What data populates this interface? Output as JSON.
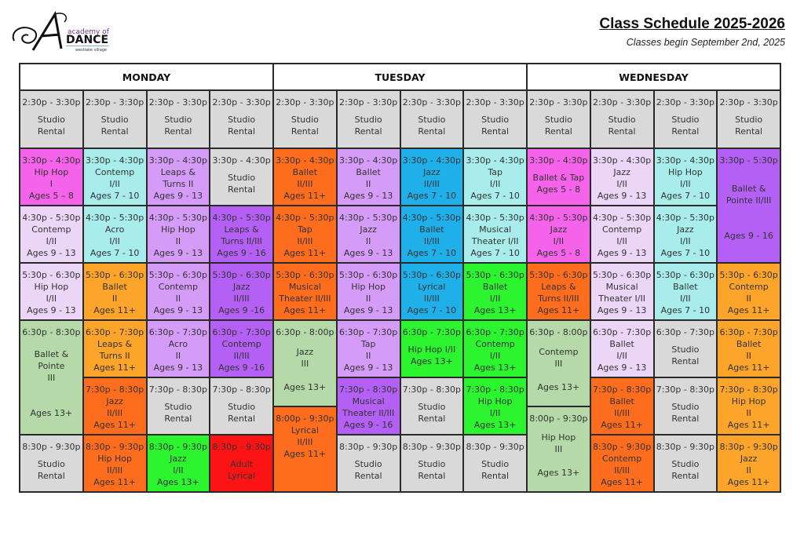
{
  "logo": {
    "script_letter": "A",
    "line1": "academy of",
    "line2": "DANCE",
    "line3": "westlake village"
  },
  "header": {
    "title": "Class Schedule 2025-2026",
    "subtitle": "Classes begin September 2nd, 2025"
  },
  "days": [
    "MONDAY",
    "TUESDAY",
    "WEDNESDAY"
  ],
  "colors": {
    "gray": "#d9d9d9",
    "magenta": "#f463ea",
    "cyan": "#a8ecec",
    "lavender_light": "#ecd6f8",
    "lavender": "#d49cf7",
    "purple": "#b460f4",
    "orange_red": "#fe6c1e",
    "orange": "#fda52b",
    "blue": "#1fb0ea",
    "green": "#2cf42f",
    "sage": "#b5d9a9",
    "red": "#fc1414"
  },
  "cells": [
    {
      "day": 0,
      "studio": 0,
      "time": "2:30p - 3:30p",
      "color": "gray",
      "lines": [
        "Studio",
        "Rental"
      ]
    },
    {
      "day": 0,
      "studio": 1,
      "time": "2:30p - 3:30p",
      "color": "gray",
      "lines": [
        "Studio",
        "Rental"
      ]
    },
    {
      "day": 0,
      "studio": 2,
      "time": "2:30p - 3:30p",
      "color": "gray",
      "lines": [
        "Studio",
        "Rental"
      ]
    },
    {
      "day": 0,
      "studio": 3,
      "time": "2:30p - 3:30p",
      "color": "gray",
      "lines": [
        "Studio",
        "Rental"
      ]
    },
    {
      "day": 1,
      "studio": 0,
      "time": "2:30p - 3:30p",
      "color": "gray",
      "lines": [
        "Studio",
        "Rental"
      ]
    },
    {
      "day": 1,
      "studio": 1,
      "time": "2:30p - 3:30p",
      "color": "gray",
      "lines": [
        "Studio",
        "Rental"
      ]
    },
    {
      "day": 1,
      "studio": 2,
      "time": "2:30p - 3:30p",
      "color": "gray",
      "lines": [
        "Studio",
        "Rental"
      ]
    },
    {
      "day": 1,
      "studio": 3,
      "time": "2:30p - 3:30p",
      "color": "gray",
      "lines": [
        "Studio",
        "Rental"
      ]
    },
    {
      "day": 2,
      "studio": 0,
      "time": "2:30p - 3:30p",
      "color": "gray",
      "lines": [
        "Studio",
        "Rental"
      ]
    },
    {
      "day": 2,
      "studio": 1,
      "time": "2:30p - 3:30p",
      "color": "gray",
      "lines": [
        "Studio",
        "Rental"
      ]
    },
    {
      "day": 2,
      "studio": 2,
      "time": "2:30p - 3:30p",
      "color": "gray",
      "lines": [
        "Studio",
        "Rental"
      ]
    },
    {
      "day": 2,
      "studio": 3,
      "time": "2:30p - 3:30p",
      "color": "gray",
      "lines": [
        "Studio",
        "Rental"
      ]
    },
    {
      "day": 0,
      "studio": 0,
      "time": "3:30p - 4:30p",
      "color": "magenta",
      "lines": [
        "Hip Hop",
        "I",
        "Ages 5 – 8"
      ]
    },
    {
      "day": 0,
      "studio": 0,
      "time": "4:30p - 5:30p",
      "color": "lavender_light",
      "lines": [
        "Contemp",
        "I/II",
        "Ages 9 - 13"
      ]
    },
    {
      "day": 0,
      "studio": 0,
      "time": "5:30p - 6:30p",
      "color": "lavender_light",
      "lines": [
        "Hip Hop",
        "I/II",
        "Ages 9 - 13"
      ]
    },
    {
      "day": 0,
      "studio": 0,
      "time": "6:30p - 8:30p",
      "color": "sage",
      "lines": [
        "Ballet &",
        "Pointe",
        "III",
        "",
        "",
        "Ages 13+"
      ]
    },
    {
      "day": 0,
      "studio": 0,
      "time": "8:30p - 9:30p",
      "color": "gray",
      "lines": [
        "Studio",
        "Rental"
      ]
    },
    {
      "day": 0,
      "studio": 1,
      "time": "3:30p - 4:30p",
      "color": "cyan",
      "lines": [
        "Contemp",
        "I/II",
        "Ages 7 - 10"
      ]
    },
    {
      "day": 0,
      "studio": 1,
      "time": "4:30p - 5:30p",
      "color": "cyan",
      "lines": [
        "Acro",
        "I/II",
        "Ages 7 - 10"
      ]
    },
    {
      "day": 0,
      "studio": 1,
      "time": "5:30p - 6:30p",
      "color": "orange",
      "lines": [
        "Ballet",
        "II",
        "Ages 11+"
      ]
    },
    {
      "day": 0,
      "studio": 1,
      "time": "6:30p - 7:30p",
      "color": "orange",
      "lines": [
        "Leaps &",
        "Turns II",
        "Ages 11+"
      ]
    },
    {
      "day": 0,
      "studio": 1,
      "time": "7:30p - 8:30p",
      "color": "orange_red",
      "lines": [
        "Jazz",
        "II/III",
        "Ages 11+"
      ]
    },
    {
      "day": 0,
      "studio": 1,
      "time": "8:30p - 9:30p",
      "color": "orange_red",
      "lines": [
        "Hip Hop",
        "II/III",
        "Ages 11+"
      ]
    },
    {
      "day": 0,
      "studio": 2,
      "time": "3:30p - 4:30p",
      "color": "lavender",
      "lines": [
        "Leaps &",
        "Turns II",
        "Ages 9 - 13"
      ]
    },
    {
      "day": 0,
      "studio": 2,
      "time": "4:30p - 5:30p",
      "color": "lavender",
      "lines": [
        "Hip Hop",
        "II",
        "Ages 9 - 13"
      ]
    },
    {
      "day": 0,
      "studio": 2,
      "time": "5:30p - 6:30p",
      "color": "lavender",
      "lines": [
        "Contemp",
        "II",
        "Ages 9 - 13"
      ]
    },
    {
      "day": 0,
      "studio": 2,
      "time": "6:30p - 7:30p",
      "color": "lavender",
      "lines": [
        "Acro",
        "II",
        "Ages 9 - 13"
      ]
    },
    {
      "day": 0,
      "studio": 2,
      "time": "7:30p - 8:30p",
      "color": "gray",
      "lines": [
        "Studio",
        "Rental"
      ]
    },
    {
      "day": 0,
      "studio": 2,
      "time": "8:30p - 9:30p",
      "color": "green",
      "lines": [
        "Jazz",
        "I/II",
        "Ages 13+"
      ]
    },
    {
      "day": 0,
      "studio": 3,
      "time": "3:30p - 4:30p",
      "color": "gray",
      "lines": [
        "Studio",
        "Rental"
      ]
    },
    {
      "day": 0,
      "studio": 3,
      "time": "4:30p - 5:30p",
      "color": "purple",
      "lines": [
        "Leaps &",
        "Turns II/III",
        "Ages 9 - 16"
      ]
    },
    {
      "day": 0,
      "studio": 3,
      "time": "5:30p - 6:30p",
      "color": "purple",
      "lines": [
        "Jazz",
        "II/III",
        "Ages 9 -16"
      ]
    },
    {
      "day": 0,
      "studio": 3,
      "time": "6:30p - 7:30p",
      "color": "purple",
      "lines": [
        "Contemp",
        "II/III",
        "Ages 9 -16"
      ]
    },
    {
      "day": 0,
      "studio": 3,
      "time": "7:30p - 8:30p",
      "color": "gray",
      "lines": [
        "Studio",
        "Rental"
      ]
    },
    {
      "day": 0,
      "studio": 3,
      "time": "8:30p - 9:30p",
      "color": "red",
      "lines": [
        "Adult",
        "Lyrical"
      ]
    },
    {
      "day": 1,
      "studio": 0,
      "time": "3:30p - 4:30p",
      "color": "orange_red",
      "lines": [
        "Ballet",
        "II/III",
        "Ages 11+"
      ]
    },
    {
      "day": 1,
      "studio": 0,
      "time": "4:30p - 5:30p",
      "color": "orange_red",
      "lines": [
        "Tap",
        "II/III",
        "Ages 11+"
      ]
    },
    {
      "day": 1,
      "studio": 0,
      "time": "5:30p - 6:30p",
      "color": "orange_red",
      "lines": [
        "Musical",
        "Theater II/III",
        "Ages 11+"
      ]
    },
    {
      "day": 1,
      "studio": 0,
      "time": "6:30p - 8:00p",
      "color": "sage",
      "lines": [
        "Jazz",
        "III",
        "",
        "Ages 13+"
      ]
    },
    {
      "day": 1,
      "studio": 0,
      "time": "8:00p - 9:30p",
      "color": "orange_red",
      "lines": [
        "Lyrical",
        "II/III",
        "Ages 11+"
      ]
    },
    {
      "day": 1,
      "studio": 1,
      "time": "3:30p - 4:30p",
      "color": "lavender",
      "lines": [
        "Ballet",
        "II",
        "Ages 9 - 13"
      ]
    },
    {
      "day": 1,
      "studio": 1,
      "time": "4:30p - 5:30p",
      "color": "lavender",
      "lines": [
        "Jazz",
        "II",
        "Ages 9 - 13"
      ]
    },
    {
      "day": 1,
      "studio": 1,
      "time": "5:30p - 6:30p",
      "color": "lavender",
      "lines": [
        "Hip Hop",
        "II",
        "Ages 9 - 13"
      ]
    },
    {
      "day": 1,
      "studio": 1,
      "time": "6:30p - 7:30p",
      "color": "lavender",
      "lines": [
        "Tap",
        "II",
        "Ages 9 - 13"
      ]
    },
    {
      "day": 1,
      "studio": 1,
      "time": "7:30p - 8:30p",
      "color": "purple",
      "lines": [
        "Musical",
        "Theater II/III",
        "Ages 9 - 16"
      ]
    },
    {
      "day": 1,
      "studio": 1,
      "time": "8:30p - 9:30p",
      "color": "gray",
      "lines": [
        "Studio",
        "Rental"
      ]
    },
    {
      "day": 1,
      "studio": 2,
      "time": "3:30p - 4:30p",
      "color": "blue",
      "lines": [
        "Jazz",
        "II/III",
        "Ages 7 - 10"
      ]
    },
    {
      "day": 1,
      "studio": 2,
      "time": "4:30p - 5:30p",
      "color": "blue",
      "lines": [
        "Ballet",
        "II/III",
        "Ages 7 - 10"
      ]
    },
    {
      "day": 1,
      "studio": 2,
      "time": "5:30p - 6:30p",
      "color": "blue",
      "lines": [
        "Lyrical",
        "II/III",
        "Ages 7 - 10"
      ]
    },
    {
      "day": 1,
      "studio": 2,
      "time": "6:30p - 7:30p",
      "color": "green",
      "lines": [
        "Hip Hop I/II",
        "Ages 13+"
      ]
    },
    {
      "day": 1,
      "studio": 2,
      "time": "7:30p - 8:30p",
      "color": "gray",
      "lines": [
        "Studio",
        "Rental"
      ]
    },
    {
      "day": 1,
      "studio": 2,
      "time": "8:30p - 9:30p",
      "color": "gray",
      "lines": [
        "Studio",
        "Rental"
      ]
    },
    {
      "day": 1,
      "studio": 3,
      "time": "3:30p - 4:30p",
      "color": "cyan",
      "lines": [
        "Tap",
        "I/II",
        "Ages 7 - 10"
      ]
    },
    {
      "day": 1,
      "studio": 3,
      "time": "4:30p - 5:30p",
      "color": "cyan",
      "lines": [
        "Musical",
        "Theater I/II",
        "Ages 7 - 10"
      ]
    },
    {
      "day": 1,
      "studio": 3,
      "time": "5:30p - 6:30p",
      "color": "green",
      "lines": [
        "Ballet",
        "I/II",
        "Ages 13+"
      ]
    },
    {
      "day": 1,
      "studio": 3,
      "time": "6:30p - 7:30p",
      "color": "green",
      "lines": [
        "Contemp",
        "I/II",
        "Ages 13+"
      ]
    },
    {
      "day": 1,
      "studio": 3,
      "time": "7:30p - 8:30p",
      "color": "green",
      "lines": [
        "Hip Hop",
        "I/II",
        "Ages 13+"
      ]
    },
    {
      "day": 1,
      "studio": 3,
      "time": "8:30p - 9:30p",
      "color": "gray",
      "lines": [
        "Studio",
        "Rental"
      ]
    },
    {
      "day": 2,
      "studio": 0,
      "time": "3:30p - 4:30p",
      "color": "magenta",
      "lines": [
        "Ballet & Tap",
        "Ages 5 - 8"
      ]
    },
    {
      "day": 2,
      "studio": 0,
      "time": "4:30p - 5:30p",
      "color": "magenta",
      "lines": [
        "Jazz",
        "I/II",
        "Ages 5 - 8"
      ]
    },
    {
      "day": 2,
      "studio": 0,
      "time": "5:30p - 6:30p",
      "color": "orange_red",
      "lines": [
        "Leaps &",
        "Turns II/III",
        "Ages 11+"
      ]
    },
    {
      "day": 2,
      "studio": 0,
      "time": "6:30p - 8:00p",
      "color": "sage",
      "lines": [
        "Contemp",
        "III",
        "",
        "Ages 13+"
      ]
    },
    {
      "day": 2,
      "studio": 0,
      "time": "8:00p - 9:30p",
      "color": "sage",
      "lines": [
        "Hip Hop",
        "III",
        "",
        "Ages 13+"
      ]
    },
    {
      "day": 2,
      "studio": 1,
      "time": "3:30p - 4:30p",
      "color": "lavender_light",
      "lines": [
        "Jazz",
        "I/II",
        "Ages 9 - 13"
      ]
    },
    {
      "day": 2,
      "studio": 1,
      "time": "4:30p - 5:30p",
      "color": "lavender_light",
      "lines": [
        "Contemp",
        "I/II",
        "Ages 9 - 13"
      ]
    },
    {
      "day": 2,
      "studio": 1,
      "time": "5:30p - 6:30p",
      "color": "lavender_light",
      "lines": [
        "Musical",
        "Theater I/II",
        "Ages 9 - 13"
      ]
    },
    {
      "day": 2,
      "studio": 1,
      "time": "6:30p - 7:30p",
      "color": "lavender_light",
      "lines": [
        "Ballet",
        "I/II",
        "Ages 9 - 13"
      ]
    },
    {
      "day": 2,
      "studio": 1,
      "time": "7:30p - 8:30p",
      "color": "orange_red",
      "lines": [
        "Ballet",
        "II/III",
        "Ages 11+"
      ]
    },
    {
      "day": 2,
      "studio": 1,
      "time": "8:30p - 9:30p",
      "color": "orange_red",
      "lines": [
        "Contemp",
        "II/III",
        "Ages 11+"
      ]
    },
    {
      "day": 2,
      "studio": 2,
      "time": "3:30p - 4:30p",
      "color": "cyan",
      "lines": [
        "Hip Hop",
        "I/II",
        "Ages 7 - 10"
      ]
    },
    {
      "day": 2,
      "studio": 2,
      "time": "4:30p - 5:30p",
      "color": "cyan",
      "lines": [
        "Jazz",
        "I/II",
        "Ages 7 - 10"
      ]
    },
    {
      "day": 2,
      "studio": 2,
      "time": "5:30p - 6:30p",
      "color": "cyan",
      "lines": [
        "Ballet",
        "I/II",
        "Ages 7 - 10"
      ]
    },
    {
      "day": 2,
      "studio": 2,
      "time": "6:30p - 7:30p",
      "color": "gray",
      "lines": [
        "Studio",
        "Rental"
      ]
    },
    {
      "day": 2,
      "studio": 2,
      "time": "7:30p - 8:30p",
      "color": "gray",
      "lines": [
        "Studio",
        "Rental"
      ]
    },
    {
      "day": 2,
      "studio": 2,
      "time": "8:30p - 9:30p",
      "color": "gray",
      "lines": [
        "Studio",
        "Rental"
      ]
    },
    {
      "day": 2,
      "studio": 3,
      "time": "3:30p - 5:30p",
      "color": "purple",
      "lines": [
        "Ballet &",
        "Pointe II/III",
        "",
        "",
        "Ages 9 - 16"
      ]
    },
    {
      "day": 2,
      "studio": 3,
      "time": "5:30p - 6:30p",
      "color": "orange",
      "lines": [
        "Contemp",
        "II",
        "Ages 11+"
      ]
    },
    {
      "day": 2,
      "studio": 3,
      "time": "6:30p - 7:30p",
      "color": "orange",
      "lines": [
        "Ballet",
        "II",
        "Ages 11+"
      ]
    },
    {
      "day": 2,
      "studio": 3,
      "time": "7:30p - 8:30p",
      "color": "orange",
      "lines": [
        "Hip Hop",
        "II",
        "Ages 11+"
      ]
    },
    {
      "day": 2,
      "studio": 3,
      "time": "8:30p - 9:30p",
      "color": "orange",
      "lines": [
        "Jazz",
        "II",
        "Ages 11+"
      ]
    }
  ]
}
